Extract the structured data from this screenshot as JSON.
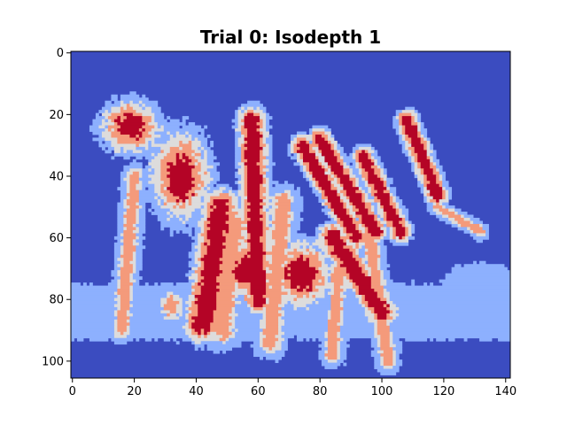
{
  "chart_data": {
    "type": "heatmap",
    "title": "Trial 0: Isodepth 1",
    "xlabel": "",
    "ylabel": "",
    "xlim": [
      -0.5,
      141.5
    ],
    "ylim": [
      105.5,
      -0.5
    ],
    "x_ticks": [
      "0",
      "20",
      "40",
      "60",
      "80",
      "100",
      "120",
      "140"
    ],
    "y_ticks": [
      "0",
      "20",
      "40",
      "60",
      "80",
      "100"
    ],
    "grid": false,
    "colormap": "coolwarm",
    "levels": [
      {
        "level": 0,
        "color": "#3b4cc0"
      },
      {
        "level": 1,
        "color": "#8db0fe"
      },
      {
        "level": 2,
        "color": "#dddcdc"
      },
      {
        "level": 3,
        "color": "#f49a7b"
      },
      {
        "level": 4,
        "color": "#b40426"
      }
    ],
    "features": [
      {
        "kind": "blob",
        "center": [
          19,
          24
        ],
        "radius": [
          8,
          7
        ],
        "peak": 4
      },
      {
        "kind": "blob",
        "center": [
          35,
          40
        ],
        "radius": [
          8,
          12
        ],
        "peak": 4
      },
      {
        "kind": "stroke",
        "from": [
          20,
          40
        ],
        "to": [
          16,
          90
        ],
        "width": 3,
        "peak": 3
      },
      {
        "kind": "stroke",
        "from": [
          48,
          50
        ],
        "to": [
          42,
          88
        ],
        "width": 5,
        "peak": 4
      },
      {
        "kind": "stroke",
        "from": [
          58,
          22
        ],
        "to": [
          60,
          80
        ],
        "width": 4,
        "peak": 4
      },
      {
        "kind": "stroke",
        "from": [
          52,
          55
        ],
        "to": [
          48,
          90
        ],
        "width": 5,
        "peak": 3
      },
      {
        "kind": "stroke",
        "from": [
          68,
          48
        ],
        "to": [
          64,
          94
        ],
        "width": 4,
        "peak": 3
      },
      {
        "kind": "stroke",
        "from": [
          74,
          30
        ],
        "to": [
          92,
          60
        ],
        "width": 3,
        "peak": 4
      },
      {
        "kind": "stroke",
        "from": [
          80,
          28
        ],
        "to": [
          98,
          58
        ],
        "width": 3,
        "peak": 4
      },
      {
        "kind": "stroke",
        "from": [
          94,
          34
        ],
        "to": [
          106,
          58
        ],
        "width": 3,
        "peak": 4
      },
      {
        "kind": "stroke",
        "from": [
          108,
          22
        ],
        "to": [
          118,
          46
        ],
        "width": 3,
        "peak": 4
      },
      {
        "kind": "stroke",
        "from": [
          118,
          50
        ],
        "to": [
          132,
          58
        ],
        "width": 2,
        "peak": 3
      },
      {
        "kind": "blob",
        "center": [
          74,
          72
        ],
        "radius": [
          8,
          9
        ],
        "peak": 4
      },
      {
        "kind": "stroke",
        "from": [
          84,
          60
        ],
        "to": [
          100,
          84
        ],
        "width": 4,
        "peak": 4
      },
      {
        "kind": "stroke",
        "from": [
          96,
          60
        ],
        "to": [
          102,
          100
        ],
        "width": 3,
        "peak": 3
      },
      {
        "kind": "stroke",
        "from": [
          86,
          70
        ],
        "to": [
          84,
          98
        ],
        "width": 3,
        "peak": 3
      },
      {
        "kind": "blob",
        "center": [
          56,
          70
        ],
        "radius": [
          6,
          8
        ],
        "peak": 4
      },
      {
        "kind": "blob",
        "center": [
          32,
          82
        ],
        "radius": [
          4,
          5
        ],
        "peak": 3
      },
      {
        "kind": "band",
        "from": [
          0,
          84
        ],
        "to": [
          141,
          84
        ],
        "width": 6,
        "peak": 1
      },
      {
        "kind": "blob",
        "center": [
          132,
          74
        ],
        "radius": [
          8,
          4
        ],
        "peak": 1
      }
    ]
  }
}
